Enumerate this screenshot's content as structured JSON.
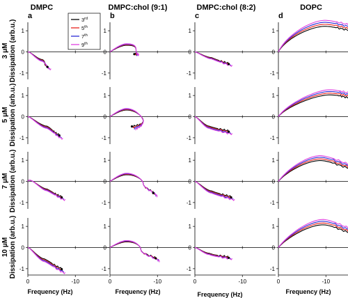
{
  "figure": {
    "columns": [
      "DMPC",
      "DMPC:chol (9:1)",
      "DMPC:chol (8:2)",
      "DOPC"
    ],
    "panel_letters": [
      "a",
      "b",
      "c",
      "d"
    ],
    "rows": [
      "3 μM",
      "5 μM",
      "7 μM",
      "10 μM"
    ],
    "ylabel": "Dissipation (arb.u.)",
    "xlabel": "Frequency (Hz)"
  },
  "legend": {
    "entries": [
      {
        "n": "3",
        "sup": "rd",
        "color": "#000000"
      },
      {
        "n": "5",
        "sup": "th",
        "color": "#e8231d"
      },
      {
        "n": "7",
        "sup": "th",
        "color": "#2a2ad6"
      },
      {
        "n": "9",
        "sup": "th",
        "color": "#e040e0"
      }
    ]
  },
  "chart_data": {
    "type": "line",
    "layout": "4x4 grid of panels",
    "xlabel": "Frequency (Hz)",
    "ylabel": "Dissipation (arb.u.)",
    "xlim": [
      0,
      -17
    ],
    "ylim": [
      -1.3,
      1.4
    ],
    "x_ticks": [
      0,
      -10
    ],
    "y_ticks": [
      -1,
      0,
      1
    ],
    "series_names": [
      "3rd",
      "5th",
      "7th",
      "9th"
    ],
    "series_colors": [
      "#000000",
      "#e8231d",
      "#2a2ad6",
      "#e040e0"
    ],
    "panels": [
      {
        "row": "3 μM",
        "column": "DMPC",
        "shape": "hook",
        "xpeak": -0.5,
        "ypeak": 0.03,
        "xmid": -3,
        "ymid": -0.4,
        "xend": -4.5,
        "yend": -0.75
      },
      {
        "row": "3 μM",
        "column": "DMPC:chol (9:1)",
        "shape": "loop",
        "xpeak": -3.5,
        "ypeak": 0.35,
        "xmid": -5.5,
        "ymid": 0.05,
        "xend": -5.5,
        "yend": -0.15
      },
      {
        "row": "3 μM",
        "column": "DMPC:chol (8:2)",
        "shape": "hook",
        "xpeak": -0.5,
        "ypeak": 0.0,
        "xmid": -3.5,
        "ymid": -0.3,
        "xend": -7.5,
        "yend": -0.6
      },
      {
        "row": "3 μM",
        "column": "DOPC",
        "shape": "peak",
        "xpeak": -10,
        "ypeak": 1.35,
        "xmid": -4,
        "ymid": 0.9,
        "xend": -16,
        "yend": 1.1
      },
      {
        "row": "5 μM",
        "column": "DMPC",
        "shape": "hook",
        "xpeak": -0.5,
        "ypeak": 0.02,
        "xmid": -4,
        "ymid": -0.5,
        "xend": -7,
        "yend": -0.95
      },
      {
        "row": "5 μM",
        "column": "DMPC:chol (9:1)",
        "shape": "loop",
        "xpeak": -3.5,
        "ypeak": 0.35,
        "xmid": -7,
        "ymid": -0.2,
        "xend": -5,
        "yend": -0.55
      },
      {
        "row": "5 μM",
        "column": "DMPC:chol (8:2)",
        "shape": "hook",
        "xpeak": -0.5,
        "ypeak": 0.0,
        "xmid": -3,
        "ymid": -0.5,
        "xend": -7.5,
        "yend": -0.75
      },
      {
        "row": "5 μM",
        "column": "DOPC",
        "shape": "peak",
        "xpeak": -11,
        "ypeak": 1.15,
        "xmid": -4,
        "ymid": 0.65,
        "xend": -16,
        "yend": 0.95
      },
      {
        "row": "7 μM",
        "column": "DMPC",
        "shape": "hook",
        "xpeak": -0.5,
        "ypeak": 0.25,
        "xmid": -4,
        "ymid": -0.4,
        "xend": -7.5,
        "yend": -0.8
      },
      {
        "row": "7 μM",
        "column": "DMPC:chol (9:1)",
        "shape": "loop",
        "xpeak": -3.5,
        "ypeak": 0.35,
        "xmid": -7,
        "ymid": -0.1,
        "xend": -9.5,
        "yend": -0.65
      },
      {
        "row": "7 μM",
        "column": "DMPC:chol (8:2)",
        "shape": "hook",
        "xpeak": -0.5,
        "ypeak": 0.0,
        "xmid": -3.5,
        "ymid": -0.5,
        "xend": -8,
        "yend": -0.8
      },
      {
        "row": "7 μM",
        "column": "DOPC",
        "shape": "peak",
        "xpeak": -9,
        "ypeak": 1.1,
        "xmid": -4,
        "ymid": 0.6,
        "xend": -16,
        "yend": 0.65
      },
      {
        "row": "10 μM",
        "column": "DMPC",
        "shape": "hook",
        "xpeak": -0.5,
        "ypeak": 0.02,
        "xmid": -3.5,
        "ymid": -0.6,
        "xend": -7.5,
        "yend": -1.1
      },
      {
        "row": "10 μM",
        "column": "DMPC:chol (9:1)",
        "shape": "loop",
        "xpeak": -3.5,
        "ypeak": 0.3,
        "xmid": -6.5,
        "ymid": -0.1,
        "xend": -10,
        "yend": -0.6
      },
      {
        "row": "10 μM",
        "column": "DMPC:chol (8:2)",
        "shape": "hook",
        "xpeak": -0.5,
        "ypeak": 0.0,
        "xmid": -3,
        "ymid": -0.3,
        "xend": -7.5,
        "yend": -0.5
      },
      {
        "row": "10 μM",
        "column": "DOPC",
        "shape": "peak",
        "xpeak": -9.5,
        "ypeak": 1.2,
        "xmid": -4,
        "ymid": 0.6,
        "xend": -16,
        "yend": 0.75
      }
    ]
  }
}
